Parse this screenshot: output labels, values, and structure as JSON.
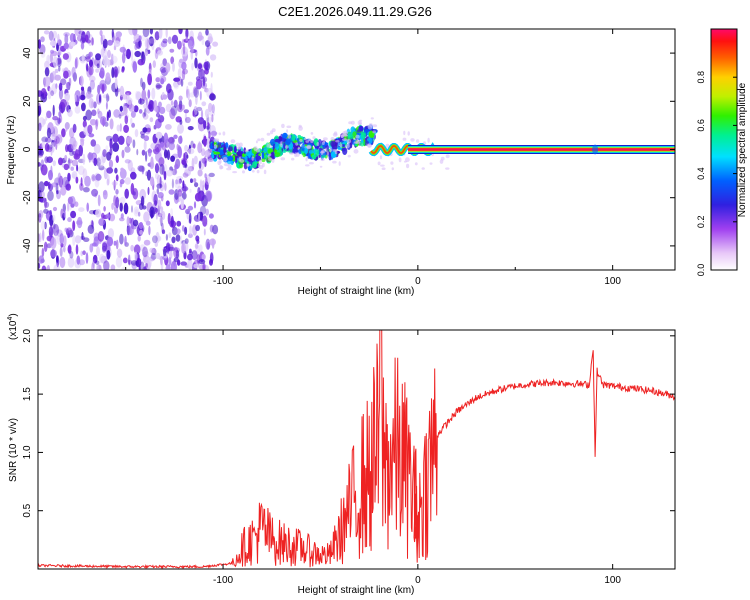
{
  "title": "C2E1.2026.049.11.29.G26",
  "colors": {
    "snr_line": "#ee2222",
    "carrier": "#f0145a",
    "noise": "#7a2fe0"
  },
  "chart_data": [
    {
      "type": "heatmap",
      "name": "spectrogram",
      "xlabel": "Height of straight line (km)",
      "ylabel": "Frequency (Hz)",
      "xlim": [
        -195,
        132
      ],
      "ylim": [
        -50,
        50
      ],
      "x_ticks": [
        -100,
        0,
        100
      ],
      "x_tick_labels": [
        "-100",
        "0",
        "100"
      ],
      "y_ticks": [
        -40,
        -20,
        0,
        20,
        40
      ],
      "y_tick_labels": [
        "-40",
        "-20",
        "0",
        "20",
        "40"
      ],
      "colorbar": {
        "label": "Normalized spectral amplitude",
        "range": [
          0,
          1
        ],
        "ticks": [
          0.0,
          0.2,
          0.4,
          0.6,
          0.8
        ],
        "tick_labels": [
          "0.0",
          "0.2",
          "0.4",
          "0.6",
          "0.8"
        ]
      },
      "regions": [
        {
          "x_range": [
            -195,
            -104
          ],
          "freq_range": [
            -50,
            50
          ],
          "amplitude": 0.2,
          "description": "scattered noise"
        },
        {
          "x_range": [
            -104,
            -22
          ],
          "freq_center": [
            -4,
            5
          ],
          "amplitude": 0.45
        },
        {
          "x_range": [
            -22,
            8
          ],
          "freq_center": [
            0,
            0
          ],
          "amplitude": 0.8
        },
        {
          "x_range": [
            8,
            132
          ],
          "freq_center": [
            0,
            0
          ],
          "amplitude": 1.0
        }
      ]
    },
    {
      "type": "line",
      "name": "snr",
      "xlabel": "Height of straight line (km)",
      "ylabel": "SNR (10 * v/v)",
      "ylabel_multiplier": "(x10",
      "ylabel_exponent": "4",
      "ylabel_multiplier_close": ")",
      "xlim": [
        -195,
        132
      ],
      "ylim": [
        0,
        2.05
      ],
      "x_ticks": [
        -100,
        0,
        100
      ],
      "x_tick_labels": [
        "-100",
        "0",
        "100"
      ],
      "y_ticks": [
        0.5,
        1.0,
        1.5,
        2.0
      ],
      "y_tick_labels": [
        "0.5",
        "1.0",
        "1.5",
        "2.0"
      ],
      "series": [
        {
          "name": "SNR",
          "x": [
            -195,
            -150,
            -110,
            -95,
            -90,
            -85,
            -80,
            -75,
            -70,
            -65,
            -60,
            -55,
            -50,
            -45,
            -40,
            -35,
            -30,
            -25,
            -20,
            -19,
            -18,
            -15,
            -10,
            -5,
            0,
            -2,
            5,
            10,
            20,
            30,
            40,
            50,
            60,
            70,
            80,
            88,
            90,
            91,
            92,
            95,
            100,
            110,
            120,
            132
          ],
          "y": [
            0.03,
            0.02,
            0.02,
            0.05,
            0.18,
            0.25,
            0.35,
            0.25,
            0.22,
            0.2,
            0.18,
            0.15,
            0.12,
            0.12,
            0.3,
            0.5,
            0.7,
            0.8,
            1.1,
            2.05,
            1.0,
            0.9,
            1.0,
            0.8,
            0.5,
            0.3,
            0.8,
            1.15,
            1.35,
            1.47,
            1.53,
            1.57,
            1.59,
            1.6,
            1.59,
            1.58,
            1.9,
            0.95,
            1.7,
            1.58,
            1.57,
            1.55,
            1.53,
            1.48
          ]
        }
      ]
    }
  ]
}
